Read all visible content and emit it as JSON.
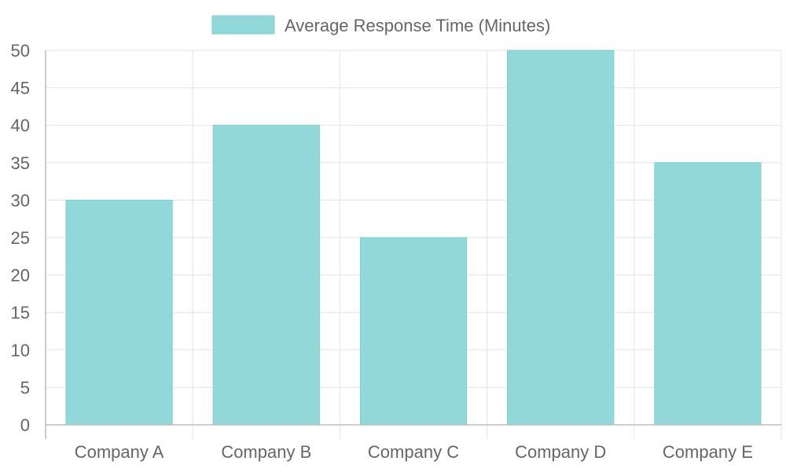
{
  "chart_data": {
    "type": "bar",
    "categories": [
      "Company A",
      "Company B",
      "Company C",
      "Company D",
      "Company E"
    ],
    "series": [
      {
        "name": "Average Response Time (Minutes)",
        "values": [
          30,
          40,
          25,
          50,
          35
        ]
      }
    ],
    "ylim": [
      0,
      50
    ],
    "ytick_step": 5,
    "grid": true,
    "legend_position": "top",
    "colors": {
      "bar_fill": "#93d8d8",
      "bar_stroke": "#7fcfcf",
      "grid": "#e5e5e5",
      "axis": "#bdbdbd",
      "text": "#666666"
    }
  }
}
